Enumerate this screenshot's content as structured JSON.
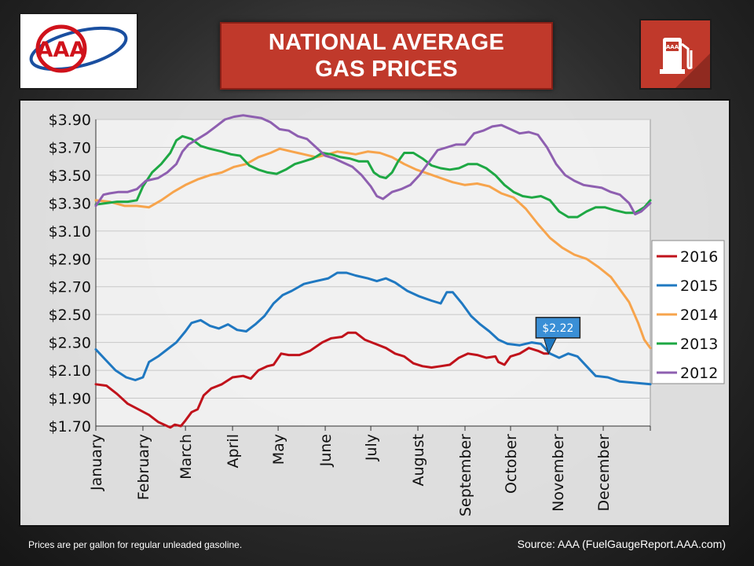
{
  "header": {
    "title_line1": "NATIONAL AVERAGE",
    "title_line2": "GAS PRICES",
    "logo_text": "AAA",
    "pump_logo_text": "AAA"
  },
  "footer": {
    "note": "Prices are per gallon for regular unleaded gasoline.",
    "source": "Source:  AAA (FuelGaugeReport.AAA.com)"
  },
  "chart_data": {
    "type": "line",
    "title": "",
    "xlabel": "",
    "ylabel": "",
    "ylim": [
      1.7,
      3.9
    ],
    "yticks": [
      1.7,
      1.9,
      2.1,
      2.3,
      2.5,
      2.7,
      2.9,
      3.1,
      3.3,
      3.5,
      3.7,
      3.9
    ],
    "ytick_labels": [
      "$1.70",
      "$1.90",
      "$2.10",
      "$2.30",
      "$2.50",
      "$2.70",
      "$2.90",
      "$3.10",
      "$3.30",
      "$3.50",
      "$3.70",
      "$3.90"
    ],
    "x_unit": "day of year",
    "xlim": [
      1,
      366
    ],
    "months": [
      "January",
      "February",
      "March",
      "April",
      "May",
      "June",
      "July",
      "August",
      "September",
      "October",
      "November",
      "December"
    ],
    "month_start_days": [
      1,
      32,
      60,
      91,
      121,
      152,
      182,
      213,
      244,
      274,
      305,
      335
    ],
    "grid": true,
    "legend_placement": "right",
    "annotation": {
      "label": "$2.22",
      "series": "2016",
      "x": 299,
      "y": 2.22
    },
    "series": [
      {
        "name": "2016",
        "color": "#c0121b",
        "points": [
          [
            1,
            2.0
          ],
          [
            8,
            1.99
          ],
          [
            15,
            1.93
          ],
          [
            22,
            1.86
          ],
          [
            29,
            1.82
          ],
          [
            36,
            1.78
          ],
          [
            42,
            1.73
          ],
          [
            46,
            1.71
          ],
          [
            50,
            1.69
          ],
          [
            53,
            1.71
          ],
          [
            57,
            1.7
          ],
          [
            60,
            1.74
          ],
          [
            64,
            1.8
          ],
          [
            68,
            1.82
          ],
          [
            72,
            1.92
          ],
          [
            77,
            1.97
          ],
          [
            84,
            2.0
          ],
          [
            91,
            2.05
          ],
          [
            98,
            2.06
          ],
          [
            103,
            2.04
          ],
          [
            108,
            2.1
          ],
          [
            114,
            2.13
          ],
          [
            118,
            2.14
          ],
          [
            123,
            2.22
          ],
          [
            128,
            2.21
          ],
          [
            135,
            2.21
          ],
          [
            142,
            2.24
          ],
          [
            150,
            2.3
          ],
          [
            156,
            2.33
          ],
          [
            163,
            2.34
          ],
          [
            167,
            2.37
          ],
          [
            172,
            2.37
          ],
          [
            178,
            2.32
          ],
          [
            185,
            2.29
          ],
          [
            192,
            2.26
          ],
          [
            198,
            2.22
          ],
          [
            204,
            2.2
          ],
          [
            210,
            2.15
          ],
          [
            216,
            2.13
          ],
          [
            222,
            2.12
          ],
          [
            228,
            2.13
          ],
          [
            234,
            2.14
          ],
          [
            240,
            2.19
          ],
          [
            246,
            2.22
          ],
          [
            252,
            2.21
          ],
          [
            258,
            2.19
          ],
          [
            264,
            2.2
          ],
          [
            266,
            2.16
          ],
          [
            270,
            2.14
          ],
          [
            274,
            2.2
          ],
          [
            280,
            2.22
          ],
          [
            286,
            2.26
          ],
          [
            292,
            2.24
          ],
          [
            296,
            2.22
          ],
          [
            299,
            2.22
          ]
        ]
      },
      {
        "name": "2015",
        "color": "#1f78c1",
        "points": [
          [
            1,
            2.25
          ],
          [
            7,
            2.18
          ],
          [
            14,
            2.1
          ],
          [
            21,
            2.05
          ],
          [
            27,
            2.03
          ],
          [
            32,
            2.05
          ],
          [
            36,
            2.16
          ],
          [
            42,
            2.2
          ],
          [
            48,
            2.25
          ],
          [
            54,
            2.3
          ],
          [
            60,
            2.38
          ],
          [
            64,
            2.44
          ],
          [
            70,
            2.46
          ],
          [
            76,
            2.42
          ],
          [
            82,
            2.4
          ],
          [
            88,
            2.43
          ],
          [
            94,
            2.39
          ],
          [
            100,
            2.38
          ],
          [
            106,
            2.43
          ],
          [
            112,
            2.49
          ],
          [
            118,
            2.58
          ],
          [
            124,
            2.64
          ],
          [
            130,
            2.67
          ],
          [
            138,
            2.72
          ],
          [
            146,
            2.74
          ],
          [
            154,
            2.76
          ],
          [
            160,
            2.8
          ],
          [
            166,
            2.8
          ],
          [
            172,
            2.78
          ],
          [
            180,
            2.76
          ],
          [
            186,
            2.74
          ],
          [
            192,
            2.76
          ],
          [
            198,
            2.73
          ],
          [
            206,
            2.67
          ],
          [
            214,
            2.63
          ],
          [
            222,
            2.6
          ],
          [
            228,
            2.58
          ],
          [
            232,
            2.66
          ],
          [
            236,
            2.66
          ],
          [
            242,
            2.58
          ],
          [
            248,
            2.49
          ],
          [
            254,
            2.43
          ],
          [
            260,
            2.38
          ],
          [
            266,
            2.32
          ],
          [
            272,
            2.29
          ],
          [
            280,
            2.28
          ],
          [
            288,
            2.3
          ],
          [
            294,
            2.29
          ],
          [
            300,
            2.22
          ],
          [
            306,
            2.19
          ],
          [
            312,
            2.22
          ],
          [
            318,
            2.2
          ],
          [
            324,
            2.13
          ],
          [
            330,
            2.06
          ],
          [
            338,
            2.05
          ],
          [
            346,
            2.02
          ],
          [
            356,
            2.01
          ],
          [
            366,
            2.0
          ]
        ]
      },
      {
        "name": "2014",
        "color": "#f7a44c",
        "points": [
          [
            1,
            3.32
          ],
          [
            10,
            3.31
          ],
          [
            20,
            3.28
          ],
          [
            28,
            3.28
          ],
          [
            36,
            3.27
          ],
          [
            44,
            3.32
          ],
          [
            52,
            3.38
          ],
          [
            60,
            3.43
          ],
          [
            68,
            3.47
          ],
          [
            76,
            3.5
          ],
          [
            84,
            3.52
          ],
          [
            92,
            3.56
          ],
          [
            100,
            3.58
          ],
          [
            108,
            3.63
          ],
          [
            116,
            3.66
          ],
          [
            122,
            3.69
          ],
          [
            130,
            3.67
          ],
          [
            138,
            3.65
          ],
          [
            146,
            3.63
          ],
          [
            154,
            3.65
          ],
          [
            160,
            3.67
          ],
          [
            166,
            3.66
          ],
          [
            172,
            3.65
          ],
          [
            180,
            3.67
          ],
          [
            188,
            3.66
          ],
          [
            196,
            3.63
          ],
          [
            204,
            3.58
          ],
          [
            212,
            3.54
          ],
          [
            220,
            3.51
          ],
          [
            228,
            3.48
          ],
          [
            236,
            3.45
          ],
          [
            244,
            3.43
          ],
          [
            252,
            3.44
          ],
          [
            260,
            3.42
          ],
          [
            268,
            3.37
          ],
          [
            276,
            3.34
          ],
          [
            284,
            3.26
          ],
          [
            292,
            3.15
          ],
          [
            300,
            3.05
          ],
          [
            308,
            2.98
          ],
          [
            316,
            2.93
          ],
          [
            324,
            2.9
          ],
          [
            332,
            2.84
          ],
          [
            340,
            2.77
          ],
          [
            346,
            2.68
          ],
          [
            352,
            2.59
          ],
          [
            358,
            2.44
          ],
          [
            362,
            2.32
          ],
          [
            366,
            2.26
          ]
        ]
      },
      {
        "name": "2013",
        "color": "#1ea844",
        "points": [
          [
            1,
            3.29
          ],
          [
            8,
            3.3
          ],
          [
            15,
            3.31
          ],
          [
            22,
            3.31
          ],
          [
            28,
            3.32
          ],
          [
            32,
            3.42
          ],
          [
            38,
            3.52
          ],
          [
            44,
            3.58
          ],
          [
            50,
            3.66
          ],
          [
            54,
            3.75
          ],
          [
            58,
            3.78
          ],
          [
            64,
            3.76
          ],
          [
            70,
            3.71
          ],
          [
            76,
            3.69
          ],
          [
            84,
            3.67
          ],
          [
            90,
            3.65
          ],
          [
            96,
            3.64
          ],
          [
            102,
            3.57
          ],
          [
            108,
            3.54
          ],
          [
            114,
            3.52
          ],
          [
            120,
            3.51
          ],
          [
            126,
            3.54
          ],
          [
            132,
            3.58
          ],
          [
            138,
            3.6
          ],
          [
            144,
            3.62
          ],
          [
            150,
            3.66
          ],
          [
            156,
            3.65
          ],
          [
            162,
            3.63
          ],
          [
            168,
            3.62
          ],
          [
            174,
            3.6
          ],
          [
            180,
            3.6
          ],
          [
            184,
            3.52
          ],
          [
            188,
            3.49
          ],
          [
            192,
            3.48
          ],
          [
            196,
            3.52
          ],
          [
            200,
            3.6
          ],
          [
            204,
            3.66
          ],
          [
            210,
            3.66
          ],
          [
            216,
            3.62
          ],
          [
            222,
            3.57
          ],
          [
            228,
            3.55
          ],
          [
            234,
            3.54
          ],
          [
            240,
            3.55
          ],
          [
            246,
            3.58
          ],
          [
            252,
            3.58
          ],
          [
            258,
            3.55
          ],
          [
            264,
            3.5
          ],
          [
            270,
            3.43
          ],
          [
            276,
            3.38
          ],
          [
            282,
            3.35
          ],
          [
            288,
            3.34
          ],
          [
            294,
            3.35
          ],
          [
            300,
            3.32
          ],
          [
            306,
            3.24
          ],
          [
            312,
            3.2
          ],
          [
            318,
            3.2
          ],
          [
            324,
            3.24
          ],
          [
            330,
            3.27
          ],
          [
            336,
            3.27
          ],
          [
            342,
            3.25
          ],
          [
            350,
            3.23
          ],
          [
            356,
            3.23
          ],
          [
            362,
            3.27
          ],
          [
            366,
            3.32
          ]
        ]
      },
      {
        "name": "2012",
        "color": "#8e5fb0",
        "points": [
          [
            1,
            3.28
          ],
          [
            6,
            3.36
          ],
          [
            10,
            3.37
          ],
          [
            16,
            3.38
          ],
          [
            22,
            3.38
          ],
          [
            28,
            3.4
          ],
          [
            34,
            3.46
          ],
          [
            42,
            3.48
          ],
          [
            48,
            3.52
          ],
          [
            54,
            3.58
          ],
          [
            58,
            3.67
          ],
          [
            62,
            3.72
          ],
          [
            68,
            3.76
          ],
          [
            74,
            3.8
          ],
          [
            80,
            3.85
          ],
          [
            86,
            3.9
          ],
          [
            92,
            3.92
          ],
          [
            98,
            3.93
          ],
          [
            104,
            3.92
          ],
          [
            110,
            3.91
          ],
          [
            116,
            3.88
          ],
          [
            122,
            3.83
          ],
          [
            128,
            3.82
          ],
          [
            134,
            3.78
          ],
          [
            140,
            3.76
          ],
          [
            146,
            3.7
          ],
          [
            152,
            3.64
          ],
          [
            158,
            3.62
          ],
          [
            164,
            3.59
          ],
          [
            170,
            3.56
          ],
          [
            176,
            3.5
          ],
          [
            182,
            3.42
          ],
          [
            186,
            3.35
          ],
          [
            190,
            3.33
          ],
          [
            196,
            3.38
          ],
          [
            202,
            3.4
          ],
          [
            208,
            3.43
          ],
          [
            214,
            3.5
          ],
          [
            218,
            3.56
          ],
          [
            222,
            3.62
          ],
          [
            226,
            3.68
          ],
          [
            232,
            3.7
          ],
          [
            238,
            3.72
          ],
          [
            244,
            3.72
          ],
          [
            250,
            3.8
          ],
          [
            256,
            3.82
          ],
          [
            262,
            3.85
          ],
          [
            268,
            3.86
          ],
          [
            274,
            3.83
          ],
          [
            280,
            3.8
          ],
          [
            286,
            3.81
          ],
          [
            292,
            3.79
          ],
          [
            298,
            3.7
          ],
          [
            304,
            3.58
          ],
          [
            310,
            3.5
          ],
          [
            316,
            3.46
          ],
          [
            322,
            3.43
          ],
          [
            328,
            3.42
          ],
          [
            334,
            3.41
          ],
          [
            340,
            3.38
          ],
          [
            346,
            3.36
          ],
          [
            352,
            3.3
          ],
          [
            356,
            3.22
          ],
          [
            360,
            3.24
          ],
          [
            366,
            3.3
          ]
        ]
      }
    ]
  }
}
